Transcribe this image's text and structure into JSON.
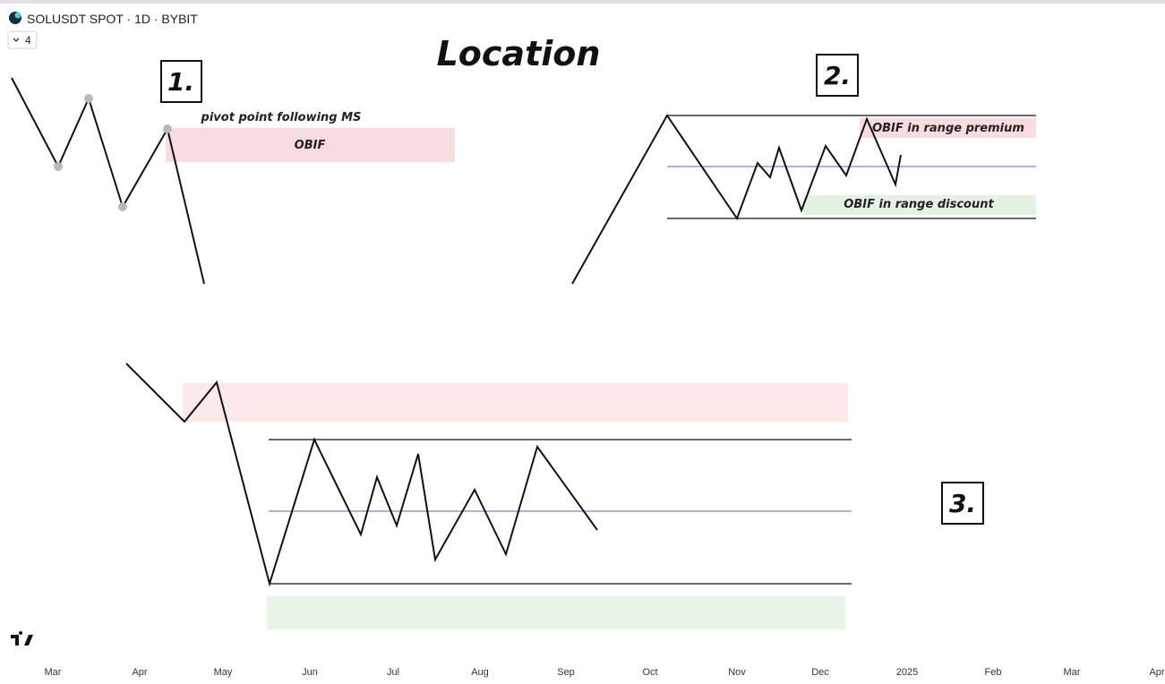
{
  "header": {
    "symbol": "SOLUSDT SPOT · 1D · BYBIT",
    "indicator_count": "4"
  },
  "title": "Location",
  "panels": [
    {
      "label": "1.",
      "annotations": [
        "pivot point following MS",
        "OBIF"
      ]
    },
    {
      "label": "2.",
      "annotations": [
        "OBIF in range premium",
        "OBIF in range discount"
      ]
    },
    {
      "label": "3."
    }
  ],
  "time_axis": [
    "Mar",
    "Apr",
    "May",
    "Jun",
    "Jul",
    "Aug",
    "Sep",
    "Oct",
    "Nov",
    "Dec",
    "2025",
    "Feb",
    "Mar",
    "Apr"
  ]
}
